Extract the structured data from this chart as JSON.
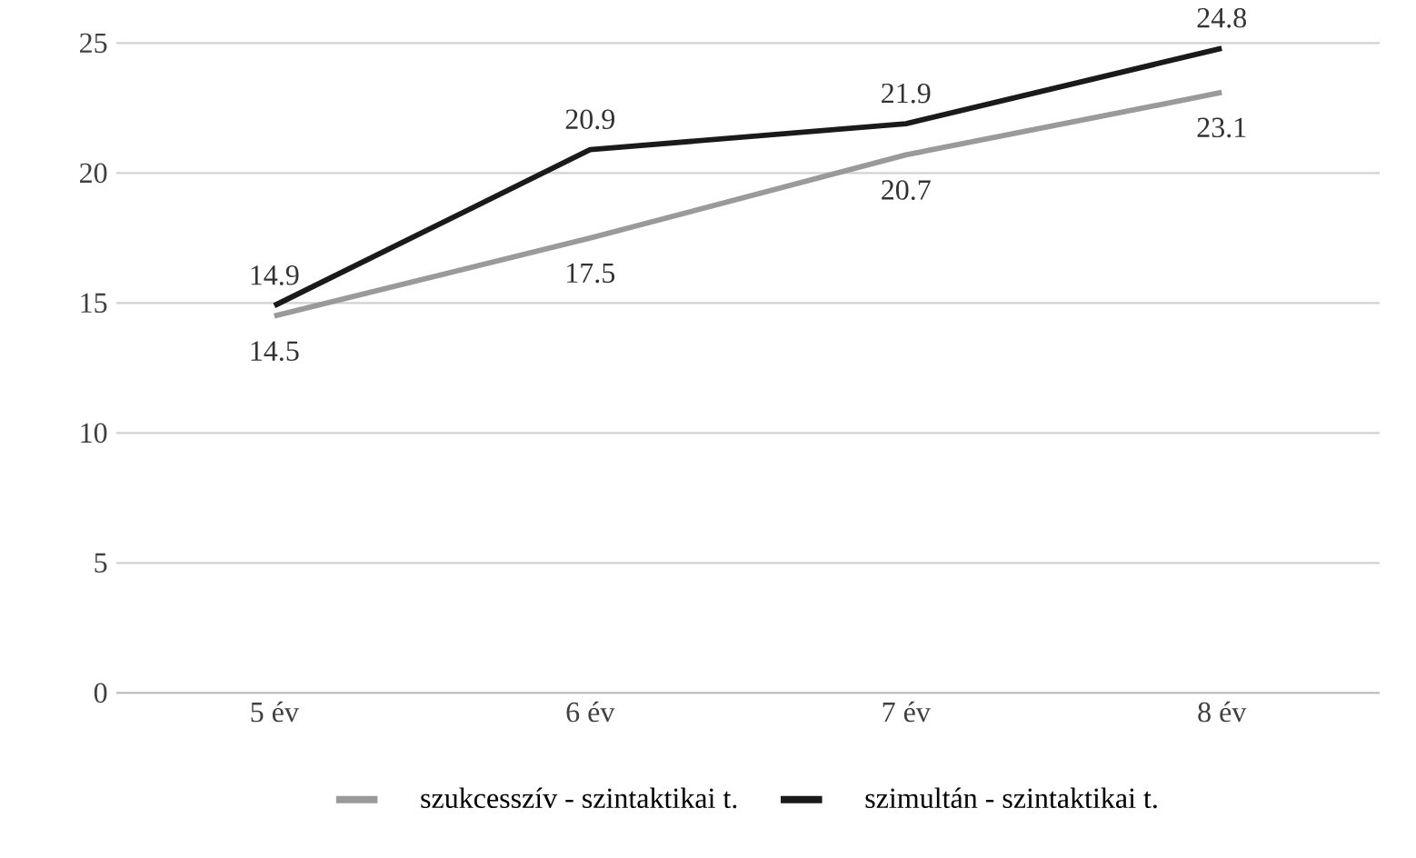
{
  "chart_data": {
    "type": "line",
    "categories": [
      "5 év",
      "6 év",
      "7 év",
      "8 év"
    ],
    "series": [
      {
        "name": "szukcesszív - szintaktikai t.",
        "color": "#9a9a9a",
        "values": [
          14.5,
          17.5,
          20.7,
          23.1
        ]
      },
      {
        "name": "szimultán - szintaktikai t.",
        "color": "#1a1a1a",
        "values": [
          14.9,
          20.9,
          21.9,
          24.8
        ]
      }
    ],
    "ylim": [
      0,
      25
    ],
    "yticks": [
      0,
      5,
      10,
      15,
      20,
      25
    ],
    "grid": "y",
    "legend": "bottom",
    "data_labels": true,
    "marker": "none",
    "line_style": "solid"
  }
}
